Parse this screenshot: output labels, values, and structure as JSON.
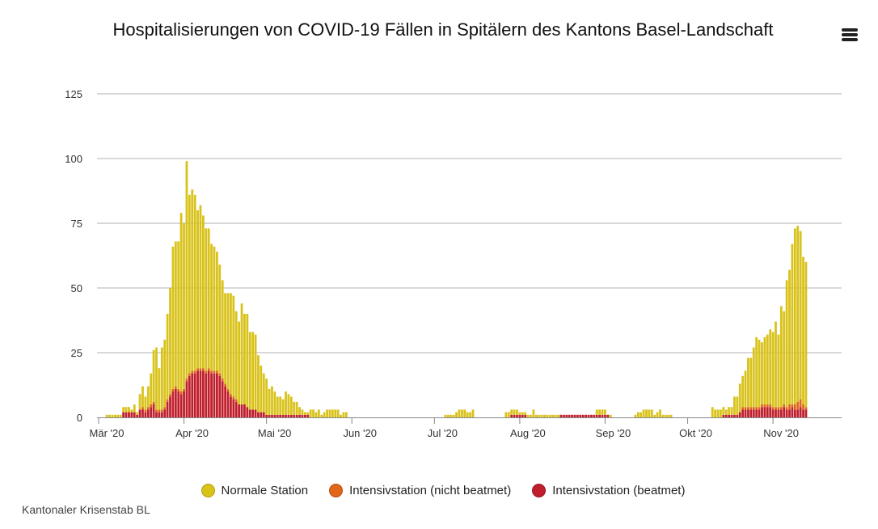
{
  "title": "Hospitalisierungen von COVID-19 Fällen in Spitälern des Kantons Basel-Landschaft",
  "menu_icon": "hamburger-menu-icon",
  "credits": "Kantonaler Krisenstab BL",
  "colors": {
    "normal": "#d9c21a",
    "icu_not_ventilated": "#e0661a",
    "icu_ventilated": "#bf1f2c",
    "grid": "#b0b0b0"
  },
  "legend": [
    {
      "label": "Normale Station",
      "color": "#d9c21a"
    },
    {
      "label": "Intensivstation (nicht beatmet)",
      "color": "#e0661a"
    },
    {
      "label": "Intensivstation (beatmet)",
      "color": "#bf1f2c"
    }
  ],
  "chart_data": {
    "type": "bar",
    "stacked": true,
    "title": "Hospitalisierungen von COVID-19 Fällen in Spitälern des Kantons Basel-Landschaft",
    "xlabel": "",
    "ylabel": "",
    "ylim": [
      0,
      125
    ],
    "y_ticks": [
      0,
      25,
      50,
      75,
      100,
      125
    ],
    "x_tick_labels": [
      "Mär '20",
      "Apr '20",
      "Mai '20",
      "Jun '20",
      "Jul '20",
      "Aug '20",
      "Sep '20",
      "Okt '20",
      "Nov '20"
    ],
    "x_range": [
      "2020-03-01",
      "2020-11-23"
    ],
    "grid": true,
    "legend_position": "bottom",
    "series": [
      {
        "name": "Normale Station",
        "color": "#d9c21a"
      },
      {
        "name": "Intensivstation (nicht beatmet)",
        "color": "#e0661a"
      },
      {
        "name": "Intensivstation (beatmet)",
        "color": "#bf1f2c"
      }
    ],
    "segments": [
      {
        "start": "2020-03-04",
        "totals": [
          1,
          1,
          1,
          1,
          1,
          1,
          4,
          4,
          4,
          3,
          5,
          2,
          9,
          12,
          8,
          12,
          17,
          26,
          27,
          19,
          27,
          30,
          40,
          50,
          66,
          68,
          68,
          79,
          75,
          99,
          86,
          88,
          86,
          80,
          82,
          78,
          73,
          73,
          67,
          66,
          64,
          59,
          53,
          48,
          48,
          48,
          47,
          41,
          37,
          44,
          40,
          40,
          33,
          33,
          32,
          24,
          20,
          17,
          15,
          11,
          12,
          10,
          8,
          8,
          7,
          10,
          9,
          8,
          6,
          6,
          4,
          3,
          2,
          2,
          3,
          3,
          2,
          3,
          1,
          2,
          3,
          3,
          3,
          3,
          3,
          1,
          2,
          2
        ],
        "ventilated": [
          0,
          0,
          0,
          0,
          0,
          0,
          2,
          2,
          2,
          2,
          2,
          1,
          3,
          3,
          2,
          3,
          4,
          5,
          2,
          2,
          2,
          3,
          6,
          8,
          10,
          11,
          10,
          9,
          10,
          14,
          16,
          17,
          17,
          18,
          18,
          18,
          17,
          18,
          17,
          17,
          17,
          16,
          14,
          12,
          10,
          8,
          7,
          6,
          5,
          5,
          5,
          4,
          3,
          3,
          3,
          2,
          2,
          2,
          1,
          1,
          1,
          1,
          1,
          1,
          1,
          1,
          1,
          1,
          1,
          1,
          1,
          1,
          1,
          1,
          0,
          0,
          0,
          0,
          0,
          0,
          0,
          0,
          0,
          0,
          0,
          0,
          0,
          0
        ],
        "not_ventilated": [
          0,
          0,
          0,
          0,
          0,
          0,
          0,
          0,
          0,
          0,
          0,
          0,
          0,
          1,
          1,
          1,
          1,
          1,
          1,
          1,
          1,
          1,
          1,
          1,
          1,
          1,
          1,
          1,
          1,
          1,
          1,
          1,
          1,
          1,
          1,
          1,
          1,
          1,
          1,
          1,
          1,
          1,
          1,
          1,
          1,
          1,
          1,
          1,
          0,
          0,
          0,
          0,
          0,
          0,
          0,
          0,
          0,
          0,
          0,
          0,
          0,
          0,
          0,
          0,
          0,
          0,
          0,
          0,
          0,
          0,
          0,
          0,
          0,
          0,
          0,
          0,
          0,
          0,
          0,
          0,
          0,
          0,
          0,
          0,
          0,
          0,
          0,
          0
        ]
      },
      {
        "start": "2020-07-05",
        "totals": [
          1,
          1,
          1,
          1,
          2,
          3,
          3,
          3,
          2,
          2,
          3
        ],
        "ventilated": [
          0,
          0,
          0,
          0,
          0,
          0,
          0,
          0,
          0,
          0,
          0
        ],
        "not_ventilated": [
          0,
          0,
          0,
          0,
          0,
          0,
          0,
          0,
          0,
          0,
          0
        ]
      },
      {
        "start": "2020-07-27",
        "totals": [
          2,
          2,
          3,
          3,
          3,
          2,
          2,
          2,
          1,
          1,
          3,
          1,
          1,
          1,
          1,
          1,
          1,
          1,
          1,
          1,
          1,
          1,
          1,
          1,
          1,
          1,
          1,
          1,
          1,
          1,
          1,
          1,
          1,
          3,
          3,
          3,
          3,
          1,
          1
        ],
        "ventilated": [
          0,
          0,
          1,
          1,
          1,
          1,
          1,
          1,
          0,
          0,
          0,
          0,
          0,
          0,
          0,
          0,
          0,
          0,
          0,
          0,
          1,
          1,
          1,
          1,
          1,
          1,
          1,
          1,
          1,
          1,
          1,
          1,
          1,
          1,
          1,
          1,
          1,
          1,
          0
        ],
        "not_ventilated": [
          0,
          0,
          0,
          0,
          0,
          0,
          0,
          0,
          0,
          0,
          0,
          0,
          0,
          0,
          0,
          0,
          0,
          0,
          0,
          0,
          0,
          0,
          0,
          0,
          0,
          0,
          0,
          0,
          0,
          0,
          0,
          0,
          0,
          0,
          0,
          0,
          0,
          0,
          0
        ]
      },
      {
        "start": "2020-09-12",
        "totals": [
          1,
          2,
          2,
          3,
          3,
          3,
          3,
          1,
          2,
          3,
          1,
          1,
          1,
          1
        ],
        "ventilated": [
          0,
          0,
          0,
          0,
          0,
          0,
          0,
          0,
          0,
          0,
          0,
          0,
          0,
          0
        ],
        "not_ventilated": [
          0,
          0,
          0,
          0,
          0,
          0,
          0,
          0,
          0,
          0,
          0,
          0,
          0,
          0
        ]
      },
      {
        "start": "2020-10-10",
        "totals": [
          4,
          3,
          3,
          3,
          4,
          3,
          4,
          4,
          8,
          8,
          13,
          16,
          18,
          23,
          23,
          27,
          31,
          30,
          29,
          31,
          32,
          34,
          33,
          37,
          32,
          43,
          41,
          53,
          57,
          67,
          73,
          74,
          72,
          62,
          60
        ],
        "ventilated": [
          0,
          0,
          0,
          0,
          1,
          1,
          1,
          1,
          1,
          1,
          2,
          3,
          3,
          3,
          3,
          3,
          3,
          3,
          4,
          4,
          4,
          4,
          3,
          3,
          3,
          3,
          4,
          3,
          3,
          4,
          3,
          3,
          4,
          3,
          3
        ],
        "not_ventilated": [
          0,
          0,
          0,
          0,
          0,
          0,
          0,
          0,
          0,
          0,
          0,
          1,
          1,
          1,
          1,
          1,
          1,
          1,
          1,
          1,
          1,
          1,
          1,
          1,
          1,
          1,
          1,
          1,
          2,
          1,
          2,
          3,
          3,
          2,
          1
        ]
      }
    ]
  }
}
